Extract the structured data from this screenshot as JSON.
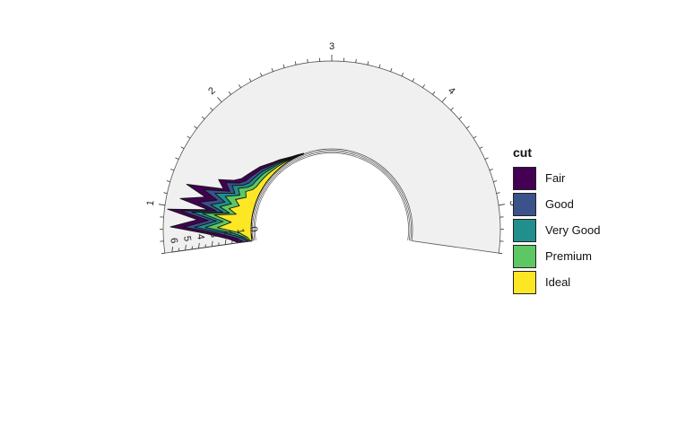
{
  "chart_data": {
    "type": "area",
    "subtype": "stacked-density-polar-partial",
    "title": "",
    "x_axis": {
      "name": "",
      "ticks": [
        "1",
        "2",
        "3",
        "4",
        "5"
      ],
      "tick_values": [
        1,
        2,
        3,
        4,
        5
      ],
      "range": [
        0.6,
        5.4
      ]
    },
    "y_axis": {
      "name": "",
      "ticks": [
        "0",
        "1",
        "2",
        "3",
        "4",
        "5",
        "6"
      ],
      "tick_values": [
        0,
        1,
        2,
        3,
        4,
        5,
        6
      ],
      "range": [
        0,
        6
      ]
    },
    "x": [
      0.6,
      0.67,
      0.75,
      0.82,
      0.9,
      0.97,
      1.02,
      1.08,
      1.15,
      1.22,
      1.3,
      1.38,
      1.45,
      1.52,
      1.6,
      1.7,
      1.8,
      1.9,
      2.0,
      2.1,
      2.2,
      2.3,
      2.4,
      2.5
    ],
    "series": [
      {
        "name": "Ideal",
        "values": [
          0.1,
          0.3,
          0.9,
          2.5,
          1.5,
          2.8,
          1.2,
          1.8,
          1.1,
          1.5,
          0.8,
          1.0,
          0.6,
          0.45,
          0.4,
          0.35,
          0.3,
          0.22,
          0.18,
          0.12,
          0.08,
          0.05,
          0.03,
          0.01
        ]
      },
      {
        "name": "Premium",
        "values": [
          0.1,
          0.2,
          0.5,
          0.9,
          0.6,
          0.9,
          0.5,
          0.7,
          0.6,
          0.8,
          0.5,
          0.6,
          0.4,
          0.3,
          0.3,
          0.26,
          0.22,
          0.16,
          0.12,
          0.1,
          0.06,
          0.04,
          0.02,
          0.01
        ]
      },
      {
        "name": "Very Good",
        "values": [
          0.1,
          0.2,
          0.5,
          0.8,
          0.5,
          0.8,
          0.5,
          0.7,
          0.5,
          0.8,
          0.4,
          0.5,
          0.35,
          0.3,
          0.25,
          0.22,
          0.18,
          0.14,
          0.1,
          0.08,
          0.05,
          0.03,
          0.02,
          0.01
        ]
      },
      {
        "name": "Good",
        "values": [
          0.3,
          0.4,
          0.6,
          0.8,
          0.6,
          0.8,
          0.5,
          0.9,
          0.6,
          0.9,
          0.4,
          0.5,
          0.35,
          0.3,
          0.25,
          0.2,
          0.18,
          0.14,
          0.1,
          0.08,
          0.05,
          0.03,
          0.02,
          0.01
        ]
      },
      {
        "name": "Fair",
        "values": [
          0.4,
          0.6,
          0.8,
          1.0,
          0.8,
          1.0,
          0.6,
          1.4,
          0.9,
          1.3,
          0.5,
          0.6,
          0.45,
          0.35,
          0.3,
          0.25,
          0.22,
          0.18,
          0.13,
          0.1,
          0.07,
          0.04,
          0.02,
          0.01
        ]
      }
    ],
    "legend": {
      "title": "cut",
      "position": "right",
      "items": [
        {
          "label": "Fair",
          "color": "#440154"
        },
        {
          "label": "Good",
          "color": "#3B528B"
        },
        {
          "label": "Very Good",
          "color": "#21908C"
        },
        {
          "label": "Premium",
          "color": "#5DC863"
        },
        {
          "label": "Ideal",
          "color": "#FDE725"
        }
      ]
    },
    "panel_background": "#F0F0F0",
    "grid": false
  }
}
